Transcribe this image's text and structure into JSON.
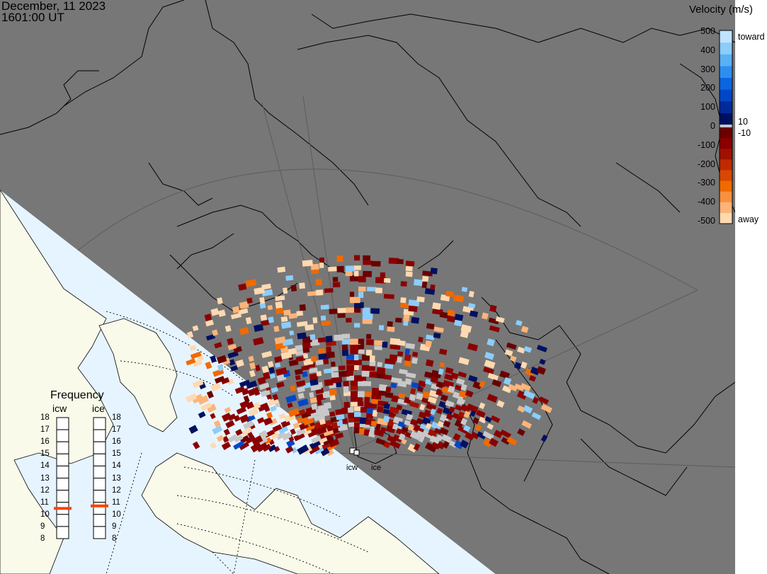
{
  "header": {
    "date": "December, 11 2023",
    "time": "1601:00 UT"
  },
  "velocity_legend": {
    "title": "Velocity (m/s)",
    "ticks": [
      "500",
      "400",
      "300",
      "200",
      "100",
      "0",
      "-100",
      "-200",
      "-300",
      "-400",
      "-500"
    ],
    "toward_label": "toward",
    "away_label": "away",
    "plus_threshold": "10",
    "minus_threshold": "-10",
    "toward_colors": [
      "#001060",
      "#002a9a",
      "#0046c8",
      "#0a66e0",
      "#2e8ef0",
      "#5ab0f6",
      "#8ccdfb",
      "#bfe4ff"
    ],
    "away_colors": [
      "#6a0000",
      "#8a0000",
      "#a01000",
      "#c02a00",
      "#d84800",
      "#f06a00",
      "#f99040",
      "#fcb478",
      "#ffd9b0"
    ],
    "zero_color": "#c8c8c8"
  },
  "frequency_panel": {
    "title": "Frequency",
    "columns": [
      {
        "label": "icw",
        "selected": 10.5
      },
      {
        "label": "ice",
        "selected": 10.7
      }
    ],
    "scale": [
      "18",
      "17",
      "16",
      "15",
      "14",
      "13",
      "12",
      "11",
      "10",
      "9",
      "8"
    ],
    "marker_color": "#ff4000"
  },
  "sites": {
    "icw": "icw",
    "ice": "ice"
  },
  "map": {
    "night_color": "#777777",
    "day_land_color": "#fafaeb",
    "day_ocean_color": "#e6f4ff"
  }
}
